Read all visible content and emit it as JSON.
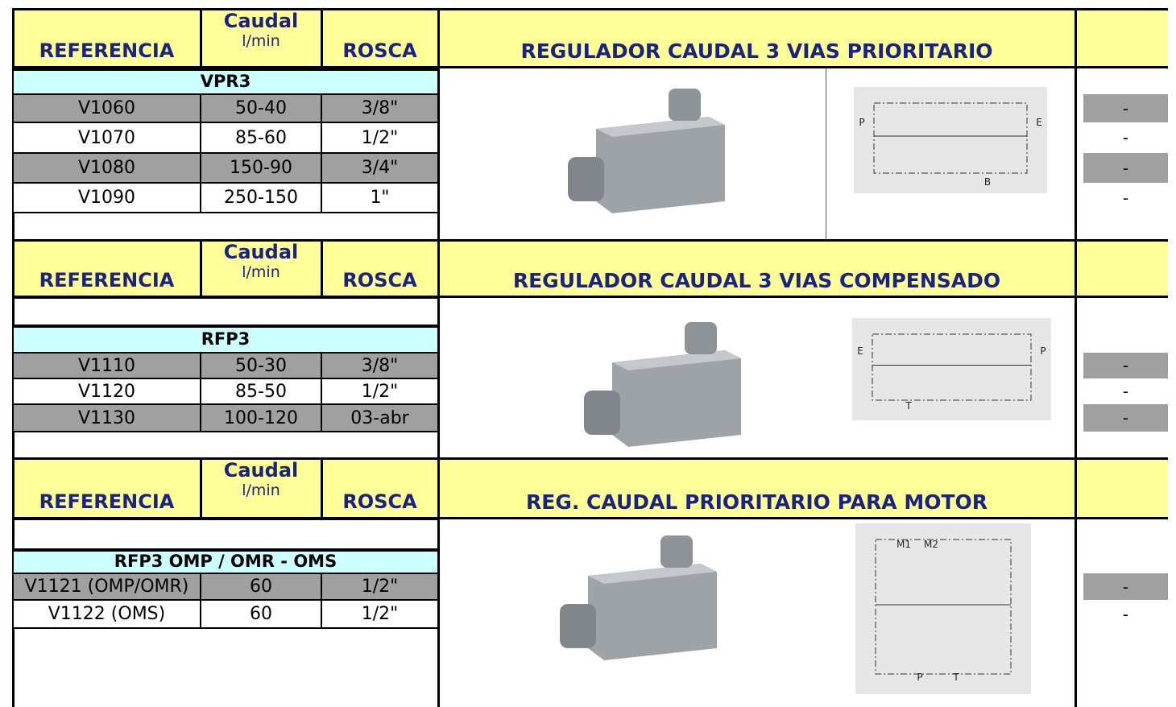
{
  "sections": [
    {
      "header": {
        "ref": "REFERENCIA",
        "caudal": "Caudal",
        "unit": "l/min",
        "rosca": "ROSCA",
        "title": "REGULADOR CAUDAL 3 VIAS PRIORITARIO"
      },
      "group": "VPR3",
      "rows": [
        [
          "V1060",
          "50-40",
          "3/8\"",
          "-"
        ],
        [
          "V1070",
          "85-60",
          "1/2\"",
          "-"
        ],
        [
          "V1080",
          "150-90",
          "3/4\"",
          "-"
        ],
        [
          "V1090",
          "250-150",
          "1\"",
          "-"
        ]
      ],
      "diagram_labels": [
        "P",
        "E",
        "B"
      ]
    },
    {
      "header": {
        "ref": "REFERENCIA",
        "caudal": "Caudal",
        "unit": "l/min",
        "rosca": "ROSCA",
        "title": "REGULADOR CAUDAL 3 VIAS COMPENSADO"
      },
      "group": "RFP3",
      "rows": [
        [
          "V1110",
          "50-30",
          "3/8\"",
          "-"
        ],
        [
          "V1120",
          "85-50",
          "1/2\"",
          "-"
        ],
        [
          "V1130",
          "100-120",
          "03-abr",
          "-"
        ]
      ],
      "diagram_labels": [
        "E",
        "P",
        "T"
      ]
    },
    {
      "header": {
        "ref": "REFERENCIA",
        "caudal": "Caudal",
        "unit": "l/min",
        "rosca": "ROSCA",
        "title": "REG. CAUDAL PRIORITARIO PARA MOTOR"
      },
      "group": "RFP3 OMP / OMR - OMS",
      "rows": [
        [
          "V1121 (OMP/OMR)",
          "60",
          "1/2\"",
          "-"
        ],
        [
          "V1122 (OMS)",
          "60",
          "1/2\"",
          "-"
        ]
      ],
      "diagram_labels": [
        "M1",
        "M2",
        "P",
        "T"
      ]
    }
  ]
}
